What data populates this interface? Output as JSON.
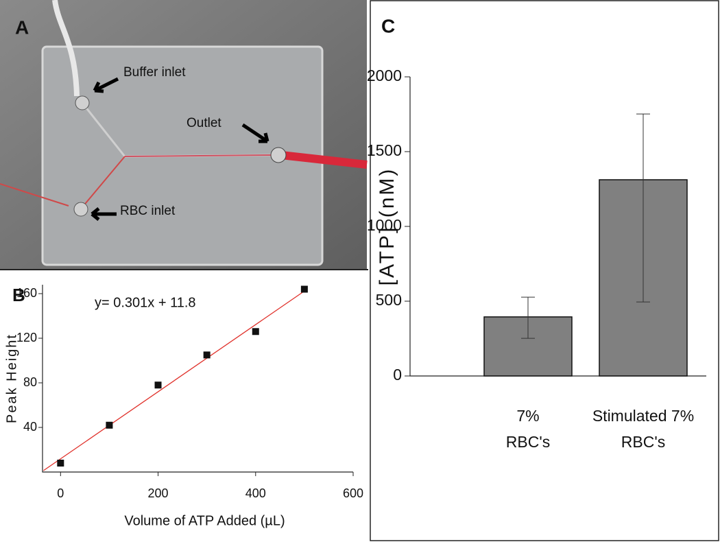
{
  "photo": {
    "label": "A",
    "annotations": [
      "Buffer inlet",
      "Outlet",
      "RBC inlet"
    ]
  },
  "chart_data": [
    {
      "type": "scatter",
      "label": "B",
      "annotation": "y= 0.301x + 11.8",
      "x_label": "Volume of ATP Added (µL)",
      "y_label": "Peak Height",
      "x": [
        0,
        100,
        200,
        300,
        400,
        500
      ],
      "values": [
        8,
        42,
        78,
        105,
        126,
        164
      ],
      "color": "#111111",
      "fit": {
        "x": [
          -35,
          500
        ],
        "values": [
          1.3,
          162.3
        ],
        "color": "#e0302a"
      },
      "xlim": [
        -37,
        600
      ],
      "ylim": [
        0,
        168
      ],
      "xticks": [
        0,
        200,
        400,
        600
      ],
      "yticks": [
        40,
        80,
        120,
        160
      ]
    },
    {
      "type": "bar",
      "label": "C",
      "y_label": "[ATP] (nM)",
      "categories": [
        [
          "7%",
          "RBC's"
        ],
        [
          "Stimulated 7%",
          "RBC's"
        ]
      ],
      "values": [
        395,
        1312
      ],
      "error_low": [
        252,
        495
      ],
      "error_high": [
        527,
        1752
      ],
      "color": "#808080",
      "ylim": [
        0,
        2000
      ],
      "yticks": [
        0,
        500,
        1000,
        1500,
        2000
      ]
    }
  ]
}
